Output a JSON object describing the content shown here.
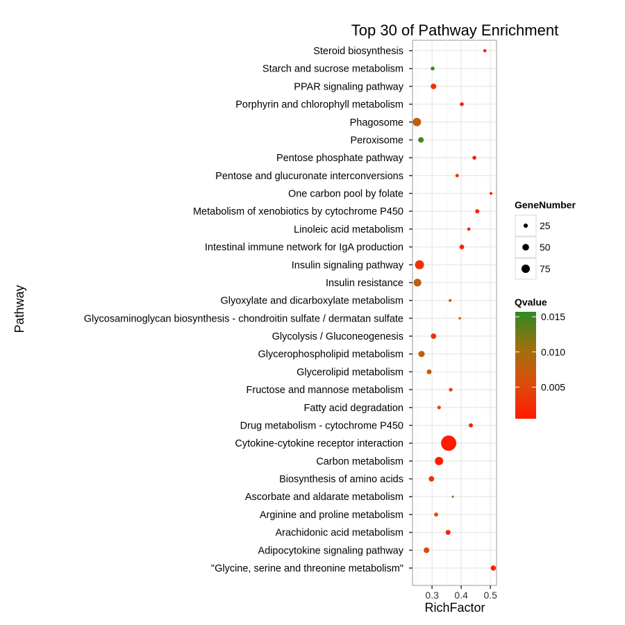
{
  "chart_data": {
    "type": "scatter",
    "title": "Top 30 of Pathway Enrichment",
    "xlabel": "RichFactor",
    "ylabel": "Pathway",
    "xlim": [
      0.233,
      0.521
    ],
    "x_ticks": [
      0.3,
      0.4,
      0.5
    ],
    "x_tick_labels": [
      "0.3",
      "0.4",
      "0.5"
    ],
    "grid": true,
    "points": [
      {
        "pathway": "Steroid biosynthesis",
        "rich_factor": 0.481,
        "gene_number": 17,
        "qvalue": 0.001
      },
      {
        "pathway": "Starch and sucrose metabolism",
        "rich_factor": 0.302,
        "gene_number": 22,
        "qvalue": 0.0152
      },
      {
        "pathway": "PPAR signaling pathway",
        "rich_factor": 0.305,
        "gene_number": 38,
        "qvalue": 0.003
      },
      {
        "pathway": "Porphyrin and chlorophyll metabolism",
        "rich_factor": 0.402,
        "gene_number": 22,
        "qvalue": 0.0008
      },
      {
        "pathway": "Phagosome",
        "rich_factor": 0.248,
        "gene_number": 75,
        "qvalue": 0.008
      },
      {
        "pathway": "Peroxisome",
        "rich_factor": 0.262,
        "gene_number": 37,
        "qvalue": 0.0148
      },
      {
        "pathway": "Pentose phosphate pathway",
        "rich_factor": 0.445,
        "gene_number": 22,
        "qvalue": 0.0008
      },
      {
        "pathway": "Pentose and glucuronate interconversions",
        "rich_factor": 0.386,
        "gene_number": 19,
        "qvalue": 0.0025
      },
      {
        "pathway": "One carbon pool by folate",
        "rich_factor": 0.502,
        "gene_number": 15,
        "qvalue": 0.0008
      },
      {
        "pathway": "Metabolism of xenobiotics by cytochrome P450",
        "rich_factor": 0.455,
        "gene_number": 24,
        "qvalue": 0.0008
      },
      {
        "pathway": "Linoleic acid metabolism",
        "rich_factor": 0.426,
        "gene_number": 18,
        "qvalue": 0.0015
      },
      {
        "pathway": "Intestinal immune network for IgA production",
        "rich_factor": 0.402,
        "gene_number": 28,
        "qvalue": 0.0012
      },
      {
        "pathway": "Insulin signaling pathway",
        "rich_factor": 0.257,
        "gene_number": 86,
        "qvalue": 0.003
      },
      {
        "pathway": "Insulin resistance",
        "rich_factor": 0.25,
        "gene_number": 64,
        "qvalue": 0.008
      },
      {
        "pathway": "Glyoxylate and dicarboxylate metabolism",
        "rich_factor": 0.362,
        "gene_number": 15,
        "qvalue": 0.006
      },
      {
        "pathway": "Glycosaminoglycan biosynthesis - chondroitin sulfate / dermatan sulfate",
        "rich_factor": 0.395,
        "gene_number": 13,
        "qvalue": 0.008
      },
      {
        "pathway": "Glycolysis / Gluconeogenesis",
        "rich_factor": 0.305,
        "gene_number": 36,
        "qvalue": 0.003
      },
      {
        "pathway": "Glycerophospholipid metabolism",
        "rich_factor": 0.264,
        "gene_number": 45,
        "qvalue": 0.008
      },
      {
        "pathway": "Glycerolipid metabolism",
        "rich_factor": 0.29,
        "gene_number": 30,
        "qvalue": 0.0075
      },
      {
        "pathway": "Fructose and mannose metabolism",
        "rich_factor": 0.364,
        "gene_number": 20,
        "qvalue": 0.0035
      },
      {
        "pathway": "Fatty acid degradation",
        "rich_factor": 0.324,
        "gene_number": 20,
        "qvalue": 0.0065
      },
      {
        "pathway": "Drug metabolism - cytochrome P450",
        "rich_factor": 0.433,
        "gene_number": 24,
        "qvalue": 0.0008
      },
      {
        "pathway": "Cytokine-cytokine receptor interaction",
        "rich_factor": 0.357,
        "gene_number": 231,
        "qvalue": 0.0005
      },
      {
        "pathway": "Carbon metabolism",
        "rich_factor": 0.324,
        "gene_number": 74,
        "qvalue": 0.0008
      },
      {
        "pathway": "Biosynthesis of amino acids",
        "rich_factor": 0.298,
        "gene_number": 36,
        "qvalue": 0.003
      },
      {
        "pathway": "Ascorbate and aldarate metabolism",
        "rich_factor": 0.371,
        "gene_number": 12,
        "qvalue": 0.0125
      },
      {
        "pathway": "Arginine and proline metabolism",
        "rich_factor": 0.314,
        "gene_number": 24,
        "qvalue": 0.006
      },
      {
        "pathway": "Arachidonic acid metabolism",
        "rich_factor": 0.355,
        "gene_number": 30,
        "qvalue": 0.0012
      },
      {
        "pathway": "Adipocytokine signaling pathway",
        "rich_factor": 0.281,
        "gene_number": 38,
        "qvalue": 0.0045
      },
      {
        "pathway": "\"Glycine, serine and threonine metabolism\"",
        "rich_factor": 0.51,
        "gene_number": 34,
        "qvalue": 0.001
      }
    ],
    "size_legend": {
      "title": "GeneNumber",
      "breaks": [
        25,
        50,
        75
      ],
      "labels": [
        "25",
        "50",
        "75"
      ]
    },
    "color_legend": {
      "title": "Qvalue",
      "low_color": "#ff1a00",
      "high_color": "#2e8b22",
      "range": [
        0.0005,
        0.0157
      ],
      "breaks": [
        0.005,
        0.01,
        0.015
      ],
      "labels": [
        "0.005",
        "0.010",
        "0.015"
      ]
    }
  }
}
